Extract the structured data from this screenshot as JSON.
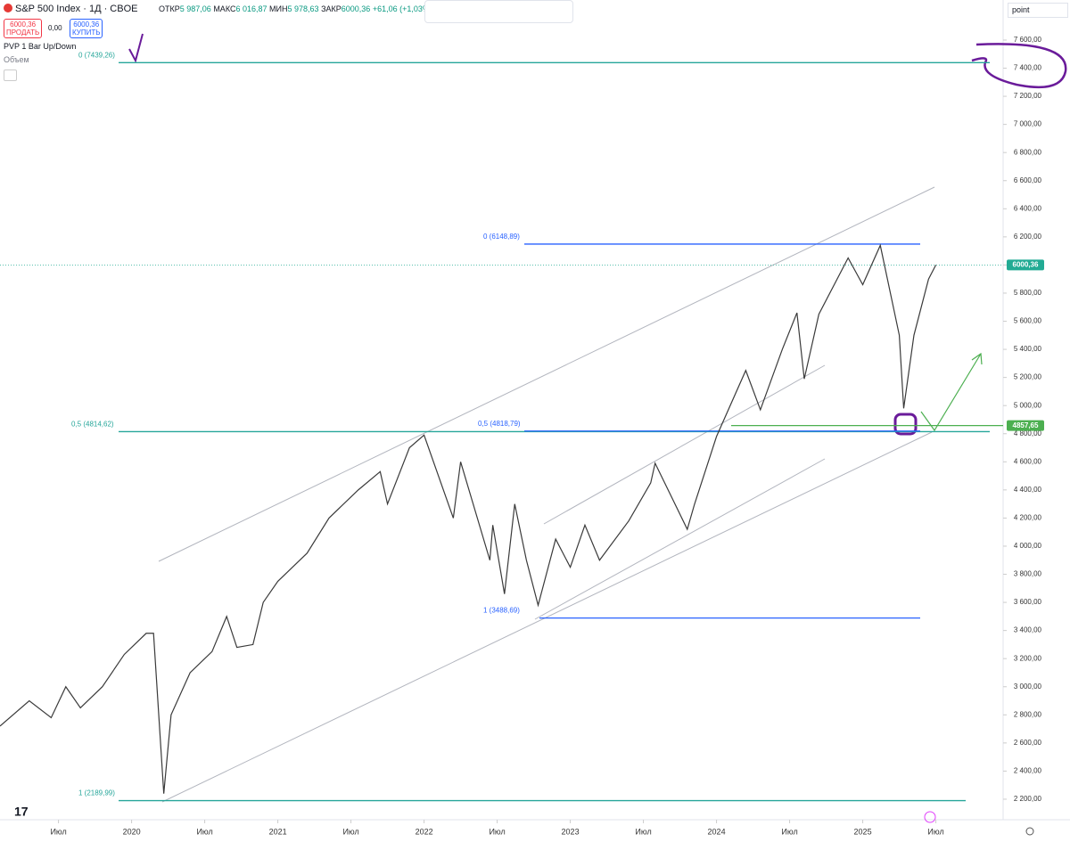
{
  "header": {
    "symbol": "S&P 500 Index · 1Д · CBOE",
    "open_label": "ОТКР",
    "open": "5 987,06",
    "high_label": "МАКС",
    "high": "6 016,87",
    "low_label": "МИН",
    "low": "5 978,63",
    "close_label": "ЗАКР",
    "close": "6000,36",
    "change": "+61,06 (+1,03%)",
    "sell_price": "6000,36",
    "sell": "ПРОДАТЬ",
    "spread": "0,00",
    "buy_price": "6000,36",
    "buy": "КУПИТЬ",
    "indicator": "PVP 1 Bar Up/Down",
    "volume": "Объем",
    "unit": "point"
  },
  "chart_data": {
    "type": "line",
    "title": "S&P 500 Index",
    "x": [
      2019.1,
      2019.3,
      2019.45,
      2019.55,
      2019.65,
      2019.8,
      2019.95,
      2020.1,
      2020.15,
      2020.22,
      2020.27,
      2020.4,
      2020.55,
      2020.65,
      2020.72,
      2020.83,
      2020.9,
      2021.0,
      2021.2,
      2021.35,
      2021.55,
      2021.7,
      2021.75,
      2021.9,
      2022.0,
      2022.2,
      2022.25,
      2022.45,
      2022.47,
      2022.55,
      2022.62,
      2022.7,
      2022.78,
      2022.9,
      2023.0,
      2023.1,
      2023.2,
      2023.4,
      2023.55,
      2023.58,
      2023.8,
      2023.85,
      2024.0,
      2024.2,
      2024.3,
      2024.45,
      2024.55,
      2024.6,
      2024.7,
      2024.9,
      2025.0,
      2025.12,
      2025.25,
      2025.28,
      2025.35,
      2025.45,
      2025.5
    ],
    "series": [
      {
        "name": "S&P 500 Index",
        "color": "#3a3a3a",
        "values": [
          2720,
          2900,
          2780,
          3000,
          2850,
          3000,
          3230,
          3380,
          3380,
          2240,
          2800,
          3100,
          3250,
          3500,
          3280,
          3300,
          3600,
          3750,
          3950,
          4200,
          4400,
          4530,
          4300,
          4700,
          4790,
          4200,
          4600,
          3900,
          4150,
          3660,
          4300,
          3900,
          3580,
          4050,
          3850,
          4150,
          3900,
          4180,
          4450,
          4590,
          4120,
          4300,
          4780,
          5250,
          4970,
          5400,
          5660,
          5190,
          5650,
          6050,
          5860,
          6140,
          5500,
          4980,
          5500,
          5900,
          6000
        ]
      }
    ],
    "xlim": [
      2019.1,
      2025.96
    ],
    "xticks": [
      {
        "value": 2019.5,
        "label": "Июл"
      },
      {
        "value": 2020,
        "label": "2020"
      },
      {
        "value": 2020.5,
        "label": "Июл"
      },
      {
        "value": 2021,
        "label": "2021"
      },
      {
        "value": 2021.5,
        "label": "Июл"
      },
      {
        "value": 2022,
        "label": "2022"
      },
      {
        "value": 2022.5,
        "label": "Июл"
      },
      {
        "value": 2023,
        "label": "2023"
      },
      {
        "value": 2023.5,
        "label": "Июл"
      },
      {
        "value": 2024,
        "label": "2024"
      },
      {
        "value": 2024.5,
        "label": "Июл"
      },
      {
        "value": 2025,
        "label": "2025"
      },
      {
        "value": 2025.5,
        "label": "Июл"
      }
    ],
    "ylim": [
      2054,
      7885
    ],
    "yticks": [
      {
        "value": 2200,
        "label": "2 200,00"
      },
      {
        "value": 2400,
        "label": "2 400,00"
      },
      {
        "value": 2600,
        "label": "2 600,00"
      },
      {
        "value": 2800,
        "label": "2 800,00"
      },
      {
        "value": 3000,
        "label": "3 000,00"
      },
      {
        "value": 3200,
        "label": "3 200,00"
      },
      {
        "value": 3400,
        "label": "3 400,00"
      },
      {
        "value": 3600,
        "label": "3 600,00"
      },
      {
        "value": 3800,
        "label": "3 800,00"
      },
      {
        "value": 4000,
        "label": "4 000,00"
      },
      {
        "value": 4200,
        "label": "4 200,00"
      },
      {
        "value": 4400,
        "label": "4 400,00"
      },
      {
        "value": 4600,
        "label": "4 600,00"
      },
      {
        "value": 4800,
        "label": "4 800,00"
      },
      {
        "value": 5000,
        "label": "5 000,00"
      },
      {
        "value": 5200,
        "label": "5 200,00"
      },
      {
        "value": 5400,
        "label": "5 400,00"
      },
      {
        "value": 5600,
        "label": "5 600,00"
      },
      {
        "value": 5800,
        "label": "5 800,00"
      },
      {
        "value": 6000,
        "label": "6 000,00"
      },
      {
        "value": 6200,
        "label": "6 200,00"
      },
      {
        "value": 6400,
        "label": "6 400,00"
      },
      {
        "value": 6600,
        "label": "6 600,00"
      },
      {
        "value": 6800,
        "label": "6 800,00"
      },
      {
        "value": 7000,
        "label": "7 000,00"
      },
      {
        "value": 7200,
        "label": "7 200,00"
      },
      {
        "value": 7400,
        "label": "7 400,00"
      },
      {
        "value": 7600,
        "label": "7 600,00"
      }
    ],
    "levels": [
      {
        "label": "0 (7439,26)",
        "value": 7439.26,
        "color": "#26a69a"
      },
      {
        "label": "0 (6148,89)",
        "value": 6148.89,
        "color": "#2962ff"
      },
      {
        "label": "0,5 (4814,62)",
        "value": 4814.62,
        "color": "#26a69a"
      },
      {
        "label": "0,5 (4818,79)",
        "value": 4818.79,
        "color": "#2962ff"
      },
      {
        "label": "1 (3488,69)",
        "value": 3488.69,
        "color": "#2962ff"
      },
      {
        "label": "1 (2189,99)",
        "value": 2189.99,
        "color": "#26a69a"
      }
    ],
    "price_tags": [
      {
        "value": 6000.36,
        "label": "6000,36",
        "color": "#22ab94"
      },
      {
        "value": 4857.65,
        "label": "4857,65",
        "color": "#4caf50"
      }
    ]
  }
}
